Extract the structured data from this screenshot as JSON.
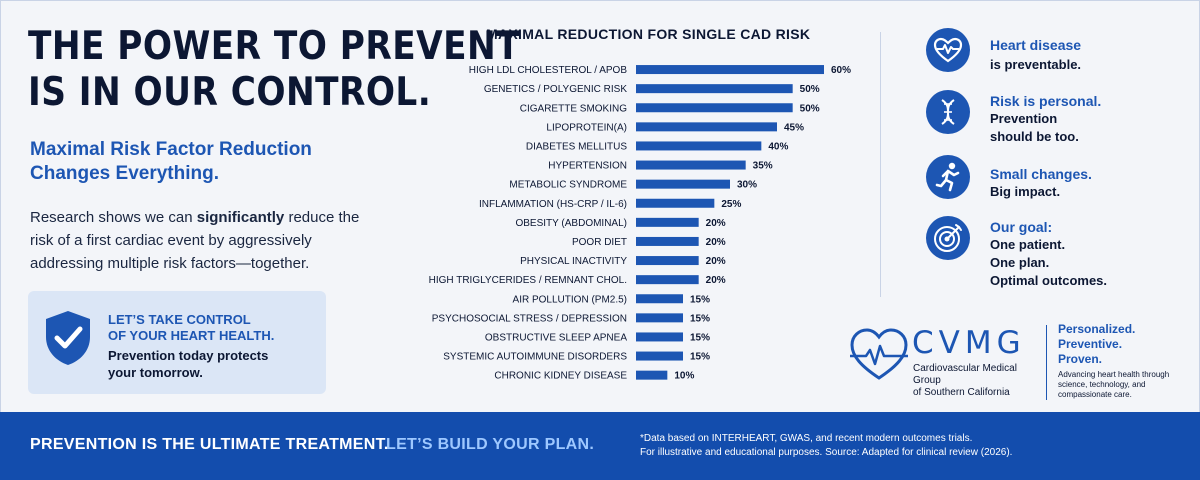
{
  "headline": {
    "line1": "THE POWER TO PREVENT",
    "line2": "IS IN OUR CONTROL."
  },
  "subhead": {
    "line1": "Maximal Risk Factor Reduction",
    "line2": "Changes Everything."
  },
  "body": {
    "before": "Research shows we can ",
    "bold": "significantly",
    "after": " reduce the risk of a first cardiac event by aggressively addressing multiple risk factors—together."
  },
  "callout": {
    "title_line1": "LET’S TAKE CONTROL",
    "title_line2": "OF YOUR HEART HEALTH.",
    "text_line1": "Prevention today protects",
    "text_line2": "your tomorrow.",
    "icon": "shield-check-icon"
  },
  "chart_data": {
    "type": "bar",
    "orientation": "horizontal",
    "title": "MAXIMAL REDUCTION FOR SINGLE CAD RISK",
    "categories": [
      "HIGH LDL CHOLESTEROL / APOB",
      "GENETICS / POLYGENIC RISK",
      "CIGARETTE SMOKING",
      "LIPOPROTEIN(A)",
      "DIABETES MELLITUS",
      "HYPERTENSION",
      "METABOLIC SYNDROME",
      "INFLAMMATION (HS-CRP / IL-6)",
      "OBESITY (ABDOMINAL)",
      "POOR DIET",
      "PHYSICAL INACTIVITY",
      "HIGH TRIGLYCERIDES / REMNANT CHOL.",
      "AIR POLLUTION (PM2.5)",
      "PSYCHOSOCIAL STRESS / DEPRESSION",
      "OBSTRUCTIVE SLEEP APNEA",
      "SYSTEMIC AUTOIMMUNE DISORDERS",
      "CHRONIC KIDNEY DISEASE"
    ],
    "values": [
      60,
      50,
      50,
      45,
      40,
      35,
      30,
      25,
      20,
      20,
      20,
      20,
      15,
      15,
      15,
      15,
      10
    ],
    "value_labels": [
      "60%",
      "50%",
      "50%",
      "45%",
      "40%",
      "35%",
      "30%",
      "25%",
      "20%",
      "20%",
      "20%",
      "20%",
      "15%",
      "15%",
      "15%",
      "15%",
      "10%"
    ],
    "xlim": [
      0,
      60
    ],
    "grid": false,
    "bar_color": "#1d56b3"
  },
  "messages": [
    {
      "icon": "heart-pulse-icon",
      "title": "Heart disease",
      "lines": [
        "is preventable."
      ]
    },
    {
      "icon": "dna-icon",
      "title": "Risk is personal.",
      "lines": [
        "Prevention",
        "should be too."
      ]
    },
    {
      "icon": "runner-icon",
      "title": "Small changes.",
      "lines": [
        "Big impact."
      ]
    },
    {
      "icon": "target-icon",
      "title": "Our goal:",
      "lines": [
        "One patient.",
        "One plan.",
        "Optimal outcomes."
      ]
    }
  ],
  "brand": {
    "name": "CVMG",
    "sub_line1": "Cardiovascular Medical Group",
    "sub_line2": "of Southern California",
    "tag1": "Personalized.",
    "tag2": "Preventive.",
    "tag3": "Proven.",
    "desc_line1": "Advancing heart health through",
    "desc_line2": "science, technology, and",
    "desc_line3": "compassionate care."
  },
  "footer": {
    "statement": "PREVENTION IS THE ULTIMATE TREATMENT.",
    "cta": "LET’S BUILD YOUR PLAN.",
    "note_line1": "*Data based on INTERHEART, GWAS, and recent modern outcomes trials.",
    "note_line2": "For illustrative and educational purposes.  Source: Adapted for clinical review (2026)."
  },
  "colors": {
    "primary": "#1d56b3",
    "dark": "#0c1733",
    "footer": "#134dad",
    "cta": "#9ec8ff",
    "callout_bg": "#dbe6f6"
  }
}
